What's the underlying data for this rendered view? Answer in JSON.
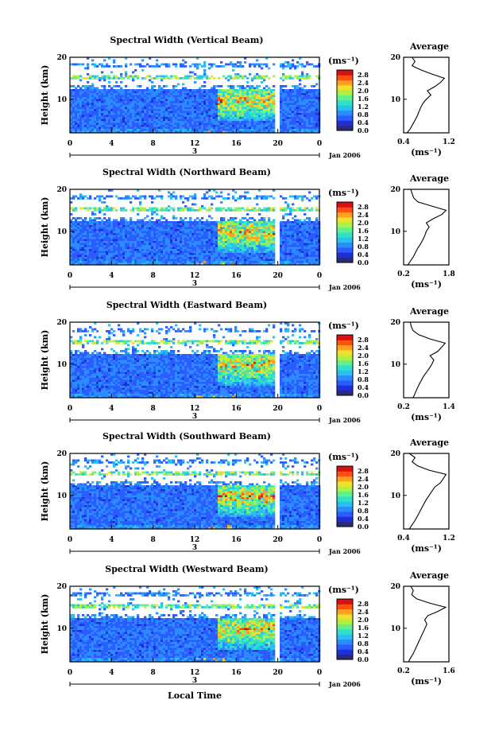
{
  "figure": {
    "xlabel": "Local Time",
    "date_label": "Jan 2006",
    "day_label": "3",
    "ylabel": "Height (km)",
    "colorbar_unit": "(ms⁻¹)",
    "avg_title": "Average",
    "avg_xlabel": "(ms⁻¹)"
  },
  "colors": {
    "colormap": [
      "#2a2a7a",
      "#1f2fd8",
      "#2a5cff",
      "#2b8cff",
      "#28c0f0",
      "#30e0c8",
      "#60f090",
      "#b0f040",
      "#f0e030",
      "#ffa020",
      "#ff5010",
      "#d81010"
    ],
    "profile_line": "#000000",
    "background": "#ffffff"
  },
  "chart_data": [
    {
      "type": "heatmap",
      "title": "Spectral Width (Vertical Beam)",
      "x_ticks": [
        "0",
        "4",
        "8",
        "12",
        "16",
        "20",
        "0"
      ],
      "xlim": [
        0,
        24
      ],
      "y_ticks": [
        "20",
        "10"
      ],
      "ylim": [
        2,
        20
      ],
      "colorbar_ticks": [
        "2.8",
        "2.4",
        "2.0",
        "1.6",
        "1.2",
        "0.8",
        "0.4",
        "0.0"
      ],
      "colorbar_range": [
        0,
        2.8
      ],
      "data_gap_hours": [
        19.6,
        20.0
      ],
      "average_profile": {
        "title": "Average",
        "xlim": [
          0.4,
          1.2
        ],
        "x_ticks": [
          "0.4",
          "1.2"
        ],
        "y_ticks": [
          "20",
          "10"
        ],
        "height_km": [
          2,
          3,
          4,
          5,
          6,
          7,
          8,
          9,
          10,
          11,
          12,
          13,
          14,
          15,
          16,
          17,
          18,
          19,
          20
        ],
        "value": [
          0.46,
          0.52,
          0.56,
          0.6,
          0.64,
          0.67,
          0.7,
          0.74,
          0.8,
          0.88,
          0.82,
          0.95,
          1.05,
          1.12,
          0.9,
          0.7,
          0.55,
          0.6,
          0.55
        ]
      }
    },
    {
      "type": "heatmap",
      "title": "Spectral Width (Northward Beam)",
      "x_ticks": [
        "0",
        "4",
        "8",
        "12",
        "16",
        "20",
        "0"
      ],
      "xlim": [
        0,
        24
      ],
      "y_ticks": [
        "20",
        "10"
      ],
      "ylim": [
        2,
        20
      ],
      "colorbar_ticks": [
        "2.8",
        "2.4",
        "2.0",
        "1.6",
        "1.2",
        "0.8",
        "0.4",
        "0.0"
      ],
      "colorbar_range": [
        0,
        2.8
      ],
      "data_gap_hours": [
        19.6,
        20.0
      ],
      "average_profile": {
        "title": "Average",
        "xlim": [
          0.2,
          1.8
        ],
        "x_ticks": [
          "0.2",
          "1.8"
        ],
        "y_ticks": [
          "20",
          "10"
        ],
        "height_km": [
          2,
          3,
          4,
          5,
          6,
          7,
          8,
          9,
          10,
          11,
          12,
          13,
          14,
          15,
          16,
          17,
          18,
          19,
          20
        ],
        "value": [
          0.35,
          0.45,
          0.55,
          0.62,
          0.7,
          0.8,
          0.88,
          0.95,
          1.0,
          1.1,
          1.0,
          1.25,
          1.55,
          1.7,
          1.2,
          0.7,
          0.55,
          0.5,
          0.45
        ]
      }
    },
    {
      "type": "heatmap",
      "title": "Spectral Width (Eastward Beam)",
      "x_ticks": [
        "0",
        "4",
        "8",
        "12",
        "16",
        "20",
        "0"
      ],
      "xlim": [
        0,
        24
      ],
      "y_ticks": [
        "20",
        "10"
      ],
      "ylim": [
        2,
        20
      ],
      "colorbar_ticks": [
        "2.8",
        "2.4",
        "2.0",
        "1.6",
        "1.2",
        "0.8",
        "0.4",
        "0.0"
      ],
      "colorbar_range": [
        0,
        2.8
      ],
      "data_gap_hours": [
        19.6,
        20.0
      ],
      "average_profile": {
        "title": "Average",
        "xlim": [
          0.2,
          1.4
        ],
        "x_ticks": [
          "0.2",
          "1.4"
        ],
        "y_ticks": [
          "20",
          "10"
        ],
        "height_km": [
          2,
          3,
          4,
          5,
          6,
          7,
          8,
          9,
          10,
          11,
          12,
          13,
          14,
          15,
          16,
          17,
          18,
          19,
          20
        ],
        "value": [
          0.45,
          0.5,
          0.55,
          0.6,
          0.66,
          0.72,
          0.8,
          0.88,
          0.95,
          1.0,
          0.9,
          1.1,
          1.2,
          1.3,
          0.9,
          0.6,
          0.45,
          0.4,
          0.38
        ]
      }
    },
    {
      "type": "heatmap",
      "title": "Spectral Width (Southward Beam)",
      "x_ticks": [
        "0",
        "4",
        "8",
        "12",
        "16",
        "20",
        "0"
      ],
      "xlim": [
        0,
        24
      ],
      "y_ticks": [
        "20",
        "10"
      ],
      "ylim": [
        2,
        20
      ],
      "colorbar_ticks": [
        "2.8",
        "2.4",
        "2.0",
        "1.6",
        "1.2",
        "0.8",
        "0.4",
        "0.0"
      ],
      "colorbar_range": [
        0,
        2.8
      ],
      "data_gap_hours": [
        19.6,
        20.0
      ],
      "average_profile": {
        "title": "Average",
        "xlim": [
          0.4,
          1.2
        ],
        "x_ticks": [
          "0.4",
          "1.2"
        ],
        "y_ticks": [
          "20",
          "10"
        ],
        "height_km": [
          2,
          3,
          4,
          5,
          6,
          7,
          8,
          9,
          10,
          11,
          12,
          13,
          14,
          15,
          16,
          17,
          18,
          19,
          20
        ],
        "value": [
          0.5,
          0.55,
          0.6,
          0.64,
          0.68,
          0.72,
          0.76,
          0.8,
          0.85,
          0.9,
          0.95,
          1.05,
          1.1,
          1.15,
          0.85,
          0.65,
          0.55,
          0.6,
          0.5
        ]
      }
    },
    {
      "type": "heatmap",
      "title": "Spectral Width (Westward Beam)",
      "x_ticks": [
        "0",
        "4",
        "8",
        "12",
        "16",
        "20",
        "0"
      ],
      "xlim": [
        0,
        24
      ],
      "y_ticks": [
        "20",
        "10"
      ],
      "ylim": [
        2,
        20
      ],
      "colorbar_ticks": [
        "2.8",
        "2.4",
        "2.0",
        "1.6",
        "1.2",
        "0.8",
        "0.4",
        "0.0"
      ],
      "colorbar_range": [
        0,
        2.8
      ],
      "data_gap_hours": [
        19.6,
        20.0
      ],
      "average_profile": {
        "title": "Average",
        "xlim": [
          0.2,
          1.6
        ],
        "x_ticks": [
          "0.2",
          "1.6"
        ],
        "y_ticks": [
          "20",
          "10"
        ],
        "height_km": [
          2,
          3,
          4,
          5,
          6,
          7,
          8,
          9,
          10,
          11,
          12,
          13,
          14,
          15,
          16,
          17,
          18,
          19,
          20
        ],
        "value": [
          0.35,
          0.42,
          0.5,
          0.56,
          0.62,
          0.68,
          0.74,
          0.8,
          0.86,
          0.92,
          0.85,
          0.95,
          1.25,
          1.5,
          1.0,
          0.6,
          0.45,
          0.5,
          0.42
        ]
      }
    }
  ]
}
